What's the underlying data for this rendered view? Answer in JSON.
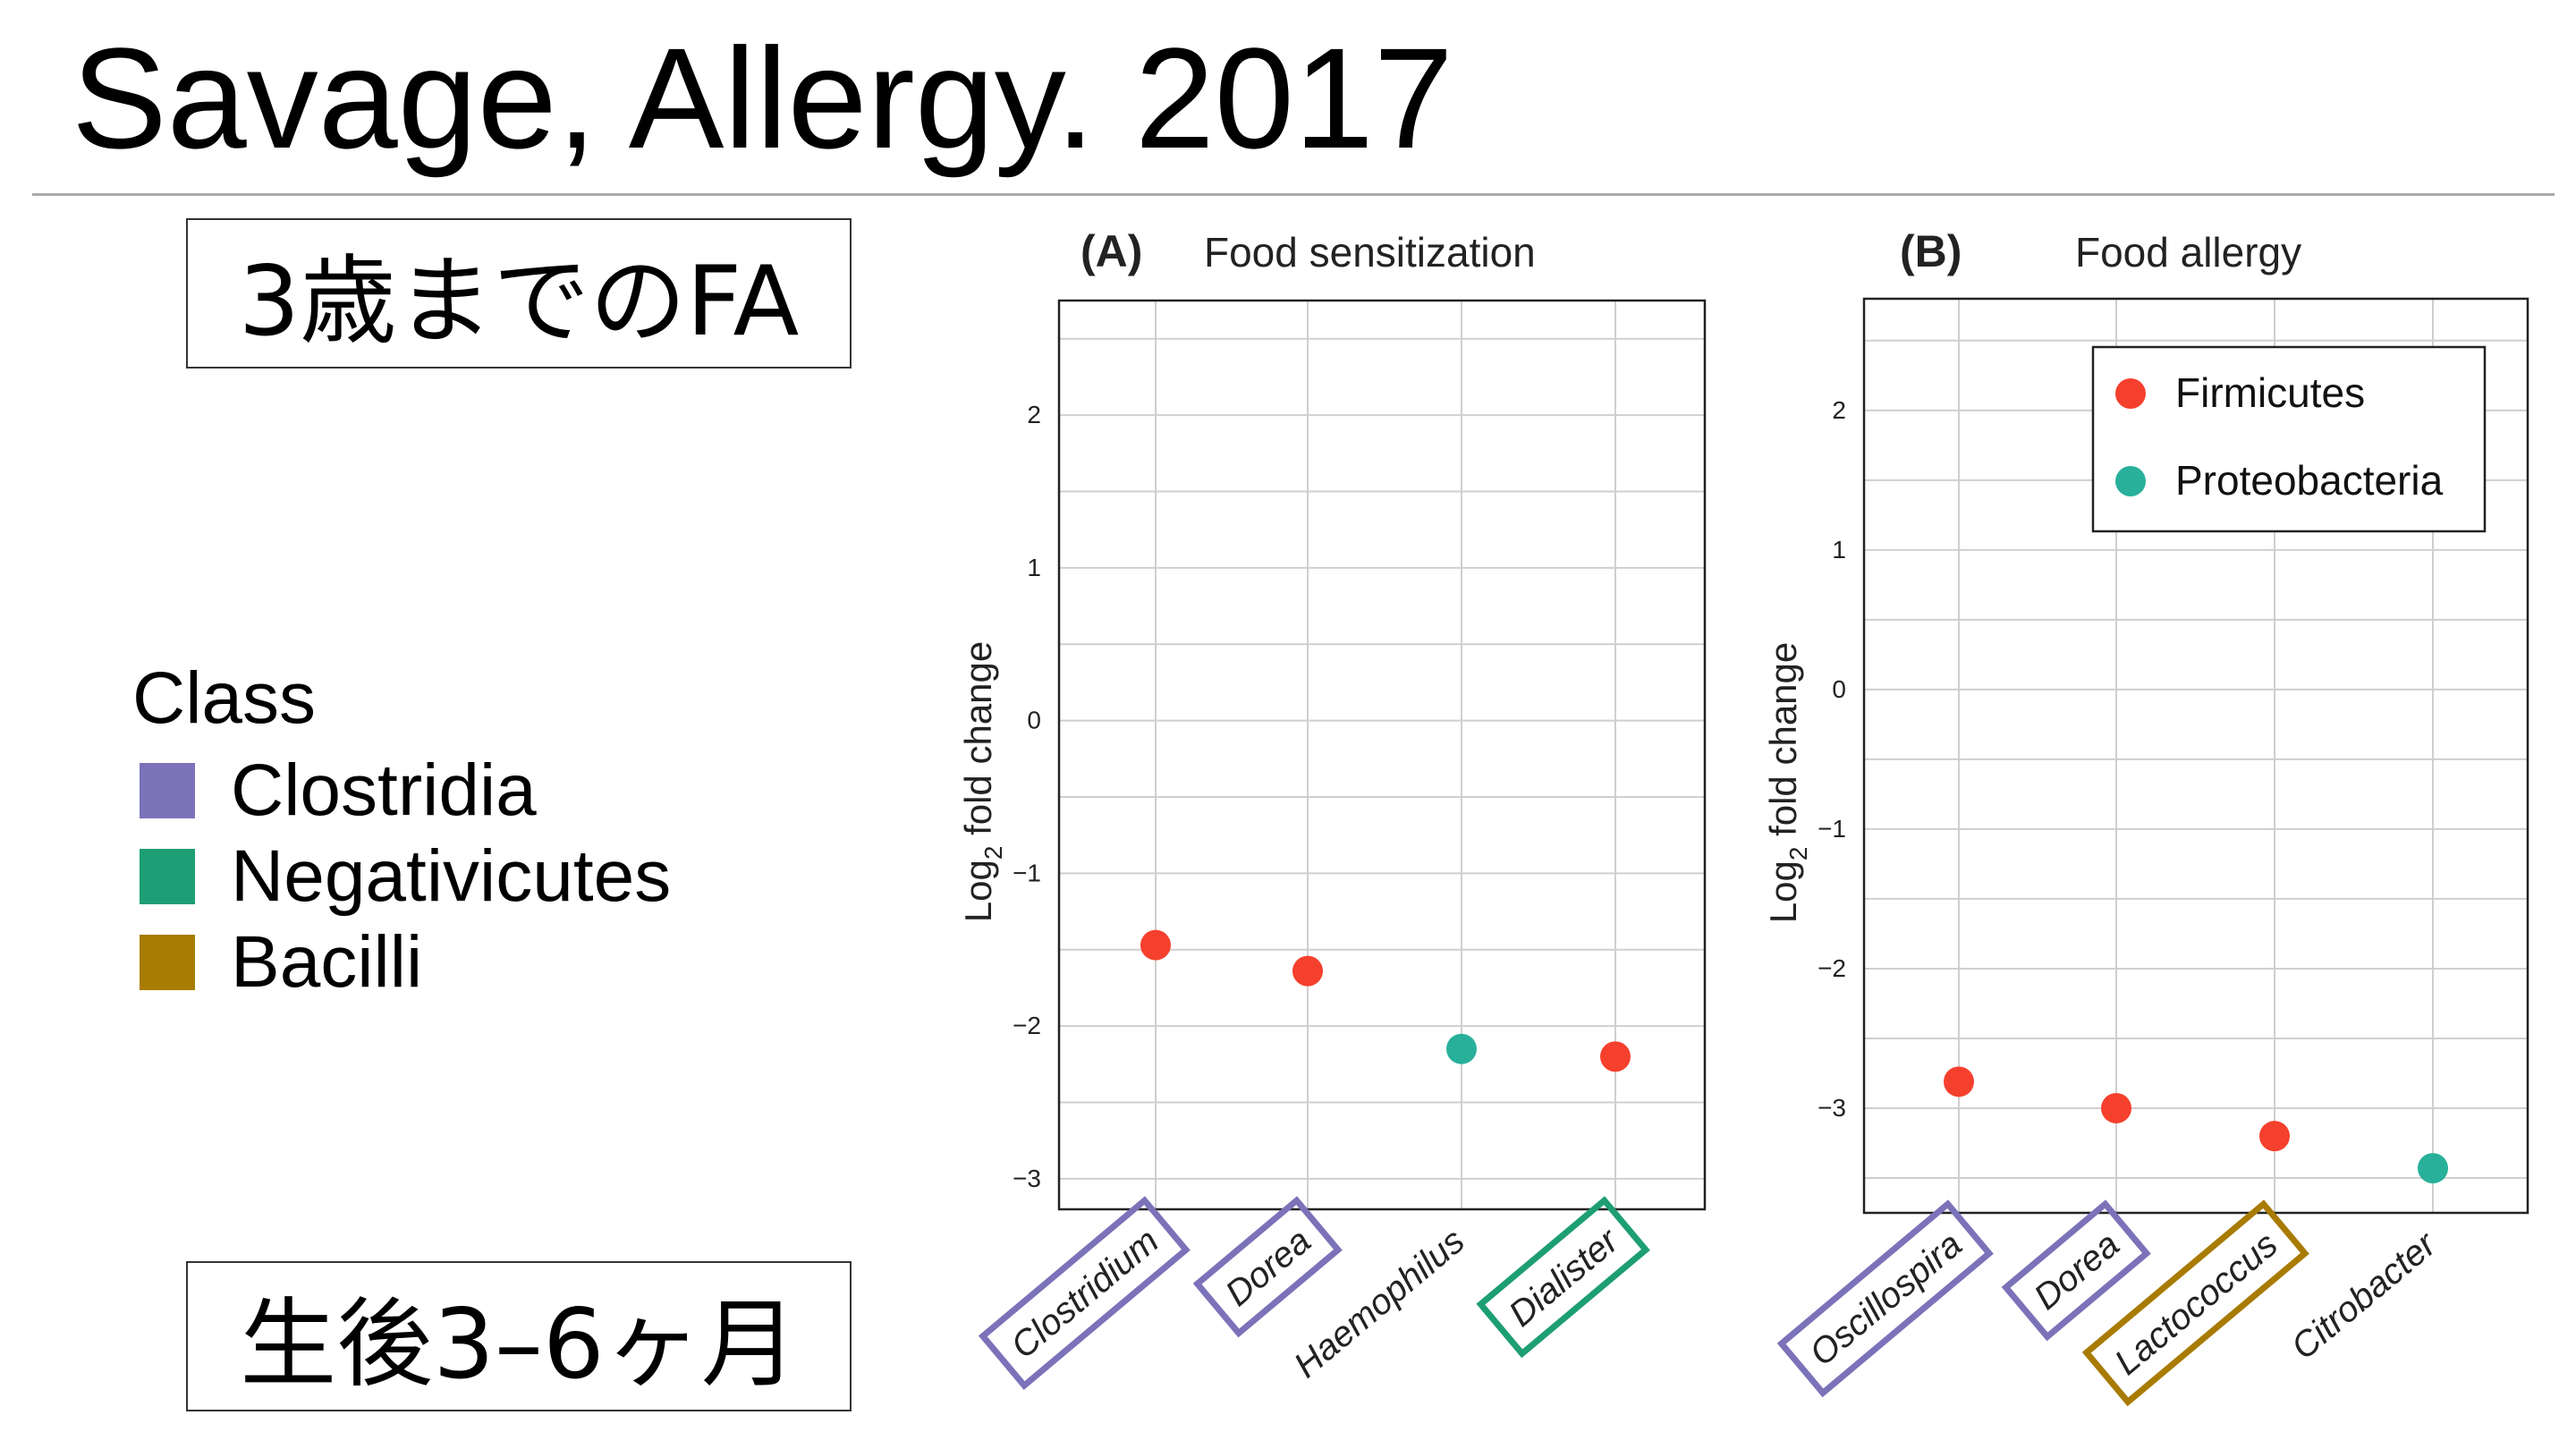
{
  "page": {
    "title": "Savage, Allergy. 2017",
    "box_top": "3歳までのFA",
    "box_bottom": "生後3–6ヶ月"
  },
  "class_legend": {
    "title": "Class",
    "items": [
      {
        "label": "Clostridia",
        "color": "#7b72b9"
      },
      {
        "label": "Negativicutes",
        "color": "#1d9e74"
      },
      {
        "label": "Bacilli",
        "color": "#a87b02"
      }
    ]
  },
  "colors": {
    "Firmicutes": "#f5402d",
    "Proteobacteria": "#28b09a"
  },
  "chart_data": [
    {
      "type": "scatter",
      "panel": "(A)",
      "title": "Food sensitization",
      "ylabel": "Log2 fold change",
      "ylim": [
        -3.2,
        2.75
      ],
      "yticks": [
        -3,
        -2,
        -1,
        0,
        1,
        2
      ],
      "ytick_labels": [
        "−3",
        "−2",
        "−1",
        "0",
        "1",
        "2"
      ],
      "grid": true,
      "categories": [
        "Clostridium",
        "Dorea",
        "Haemophilus",
        "Dialister"
      ],
      "values": [
        -1.47,
        -1.64,
        -2.15,
        -2.2
      ],
      "phylum": [
        "Firmicutes",
        "Firmicutes",
        "Proteobacteria",
        "Firmicutes"
      ],
      "class_box": [
        "Clostridia",
        "Clostridia",
        "",
        "Negativicutes"
      ]
    },
    {
      "type": "scatter",
      "panel": "(B)",
      "title": "Food allergy",
      "ylabel": "Log2 fold change",
      "ylim": [
        -3.75,
        2.8
      ],
      "yticks": [
        -3,
        -2,
        -1,
        0,
        1,
        2
      ],
      "ytick_labels": [
        "−3",
        "−2",
        "−1",
        "0",
        "1",
        "2"
      ],
      "grid": true,
      "legend": {
        "position": "top-right",
        "entries": [
          "Firmicutes",
          "Proteobacteria"
        ]
      },
      "categories": [
        "Oscillospira",
        "Dorea",
        "Lactococcus",
        "Citrobacter"
      ],
      "values": [
        -2.81,
        -3.0,
        -3.2,
        -3.43
      ],
      "phylum": [
        "Firmicutes",
        "Firmicutes",
        "Firmicutes",
        "Proteobacteria"
      ],
      "class_box": [
        "Clostridia",
        "Clostridia",
        "Bacilli",
        ""
      ]
    }
  ]
}
